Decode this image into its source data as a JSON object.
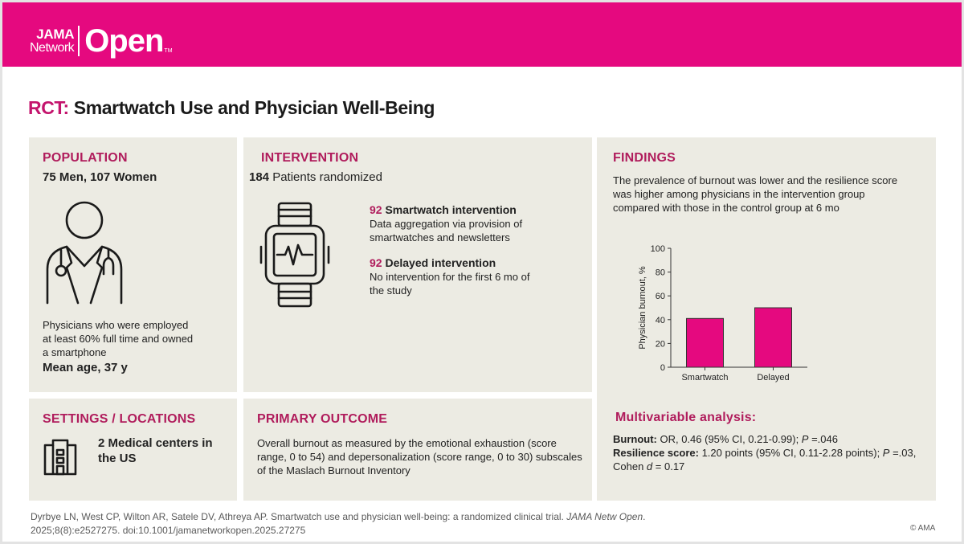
{
  "header": {
    "brand_line1": "JAMA",
    "brand_line2": "Network",
    "brand_main": "Open",
    "brand_tm": "TM",
    "color": "#e5097f"
  },
  "title": {
    "prefix": "RCT:",
    "text": "Smartwatch Use and Physician Well-Being"
  },
  "population": {
    "heading": "POPULATION",
    "counts": "75 Men, 107 Women",
    "description": "Physicians who were employed at least 60% full time and owned a smartphone",
    "mean_age": "Mean age, 37 y",
    "icon": "physician-icon"
  },
  "intervention": {
    "heading": "INTERVENTION",
    "randomized_number": "184",
    "randomized_label": "Patients randomized",
    "icon": "smartwatch-icon",
    "arm1": {
      "number": "92",
      "label": "Smartwatch intervention",
      "description": "Data aggregation via provision of smartwatches and newsletters"
    },
    "arm2": {
      "number": "92",
      "label": "Delayed intervention",
      "description": "No intervention for the first 6 mo of the study"
    }
  },
  "findings": {
    "heading": "FINDINGS",
    "summary": "The prevalence of burnout was lower and the resilience score was higher among physicians in the intervention group compared with those in the control group at 6 mo",
    "multivariable_heading": "Multivariable analysis:",
    "burnout_label": "Burnout:",
    "burnout_text_a": " OR, 0.46 (95% CI, 0.21-0.99); ",
    "burnout_p": "P",
    "burnout_text_b": " =.046",
    "resilience_label": "Resilience score:",
    "resilience_text_a": " 1.20 points (95% CI, 0.11-2.28 points); ",
    "resilience_p": "P",
    "resilience_text_b": " =.03,",
    "resilience_text_c": "Cohen ",
    "resilience_d": "d",
    "resilience_text_d": " = 0.17"
  },
  "settings": {
    "heading": "SETTINGS / LOCATIONS",
    "text": "2 Medical centers in the US",
    "icon": "building-icon"
  },
  "primary_outcome": {
    "heading": "PRIMARY OUTCOME",
    "text": "Overall burnout as measured by the emotional exhaustion (score range, 0 to 54) and depersonalization (score range, 0 to 30) subscales of the Maslach Burnout Inventory"
  },
  "footer": {
    "citation_a": "Dyrbye LN, West CP, Wilton AR, Satele DV, Athreya AP. Smartwatch use and physician well-being: a randomized clinical trial. ",
    "journal": "JAMA Netw Open",
    "citation_b": ".",
    "citation_line2": "2025;8(8):e2527275. doi:10.1001/jamanetworkopen.2025.27275",
    "copyright": "© AMA"
  },
  "chart_data": {
    "type": "bar",
    "categories": [
      "Smartwatch",
      "Delayed"
    ],
    "values": [
      41,
      50
    ],
    "ylabel": "Physician burnout, %",
    "ylim": [
      0,
      100
    ],
    "yticks": [
      0,
      20,
      40,
      60,
      80,
      100
    ],
    "bar_color": "#e5097f",
    "grid": false
  }
}
